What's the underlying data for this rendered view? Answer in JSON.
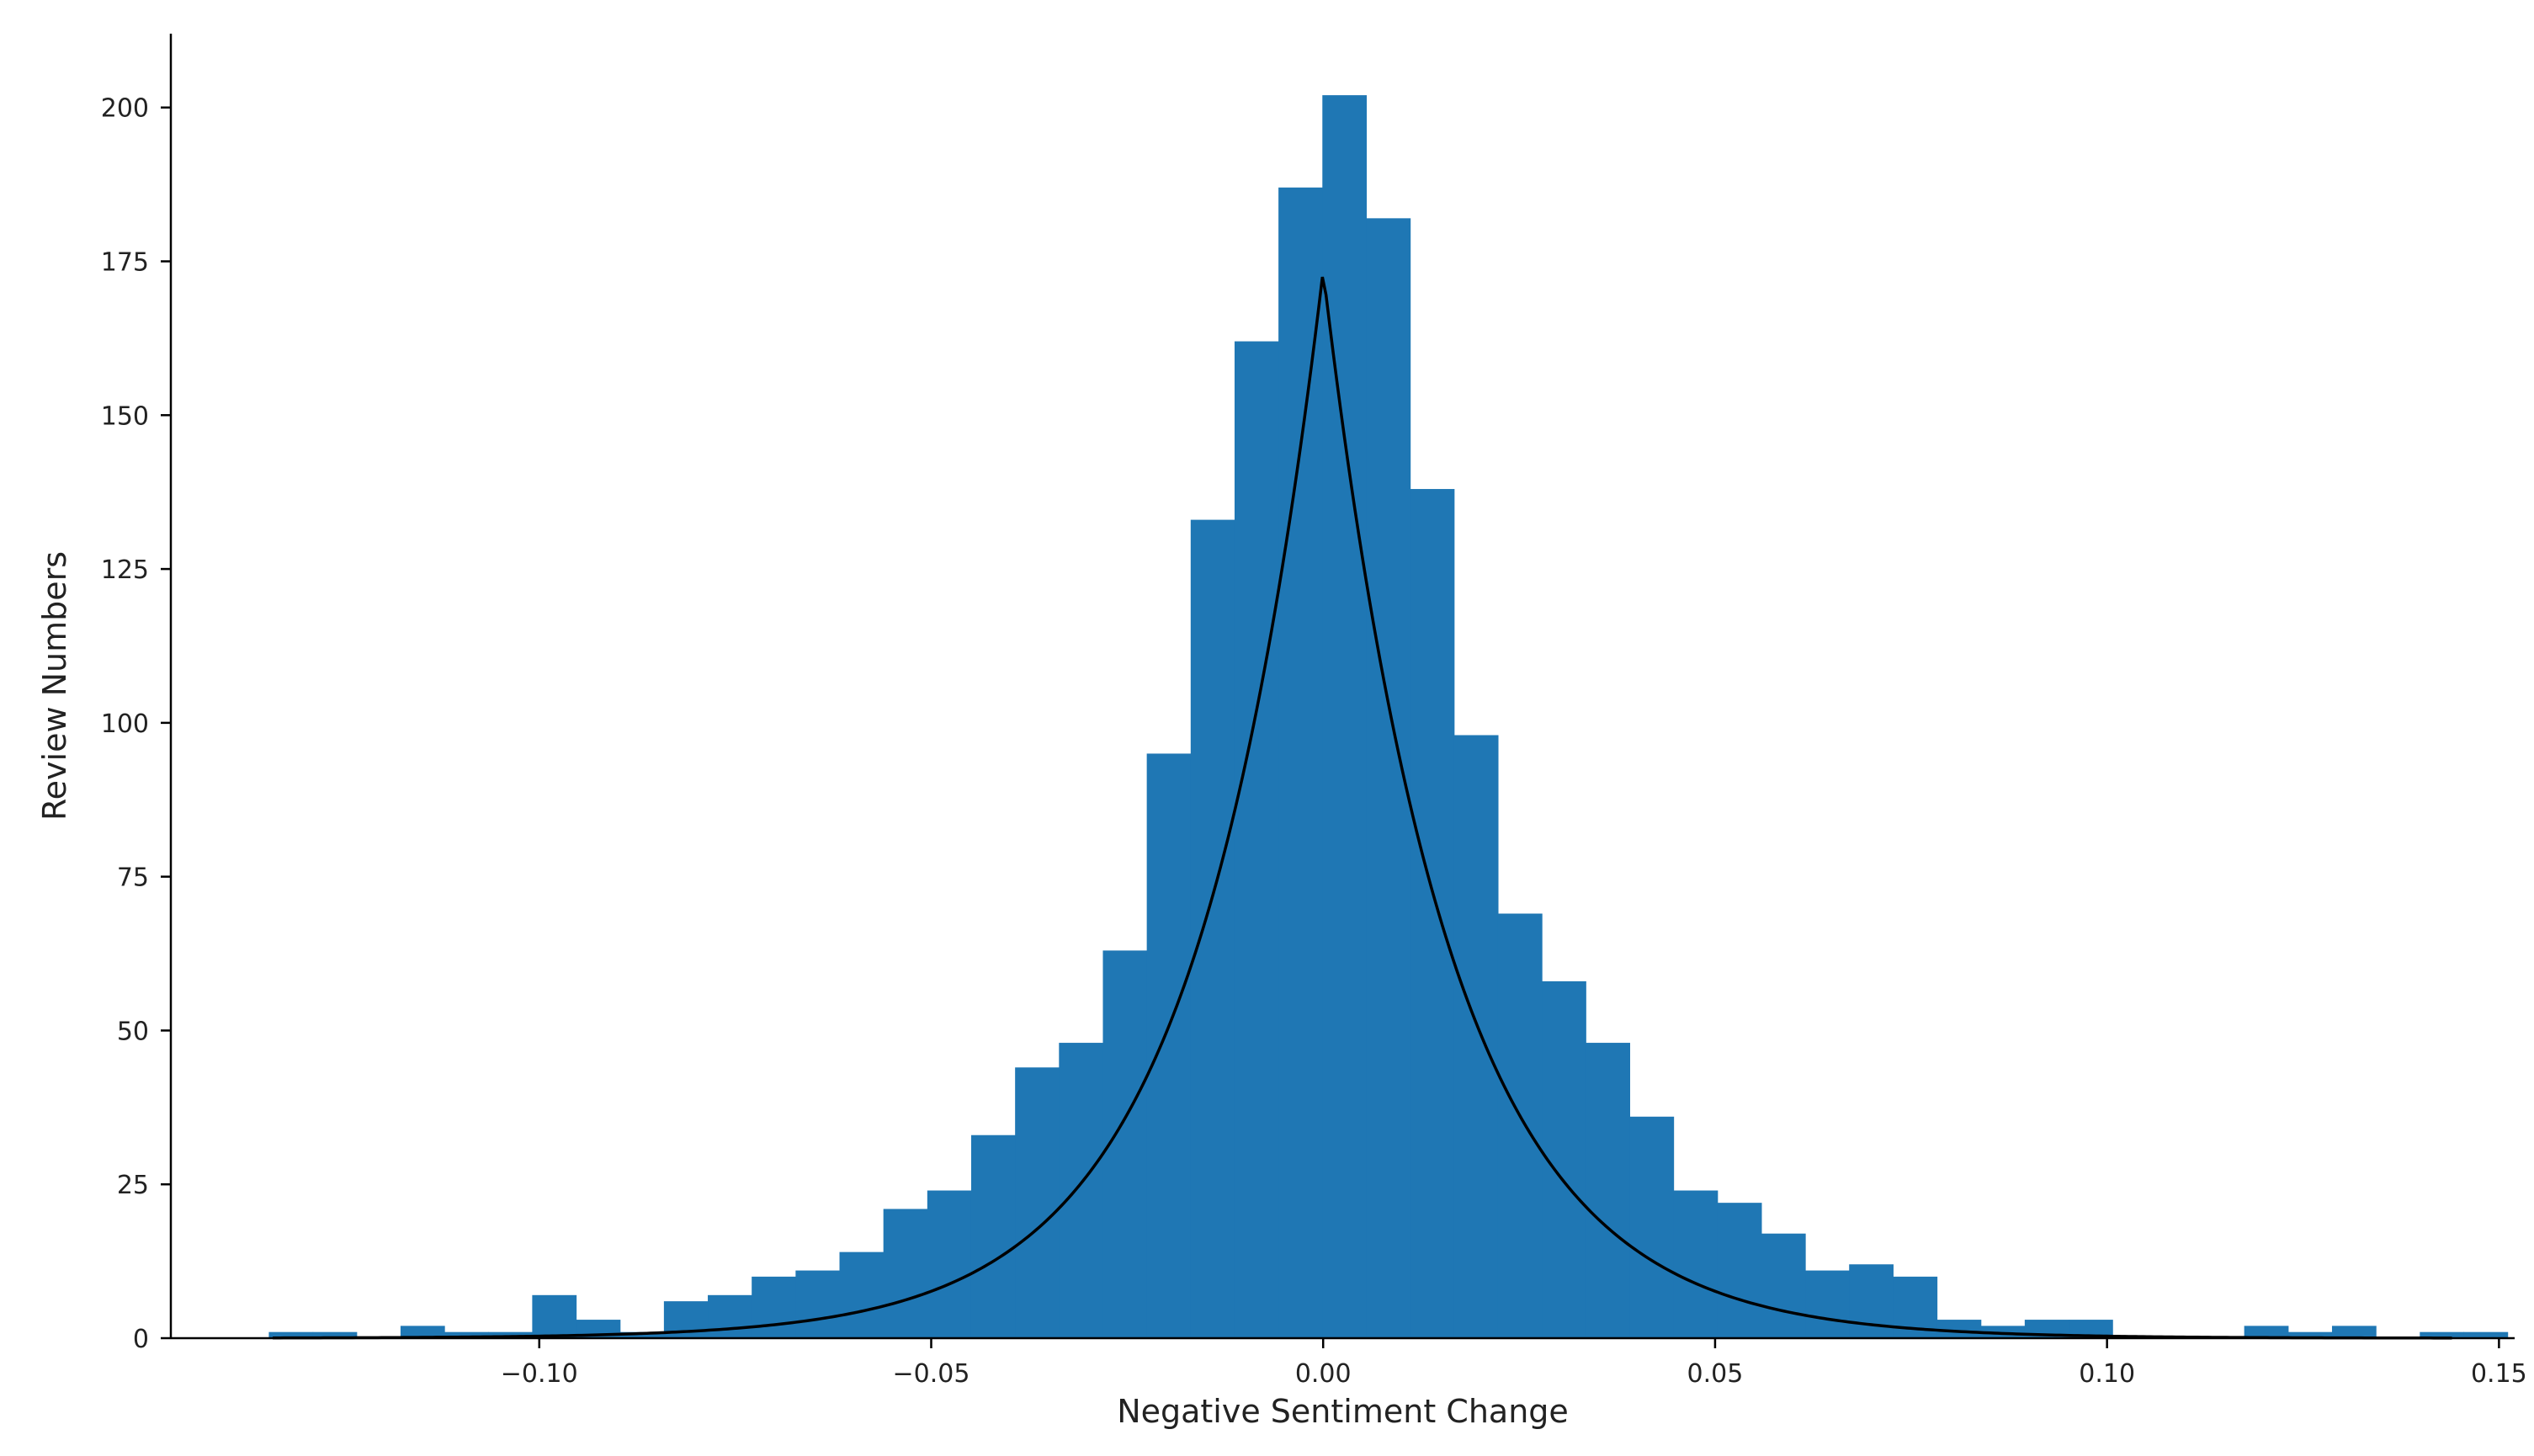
{
  "chart_data": {
    "type": "bar",
    "subtype": "histogram-with-fit",
    "xlabel": "Negative Sentiment Change",
    "ylabel": "Review Numbers",
    "xlim": [
      -0.147,
      0.152
    ],
    "ylim": [
      0,
      212
    ],
    "x_ticks": [
      {
        "value": -0.1,
        "label": "−0.10"
      },
      {
        "value": -0.05,
        "label": "−0.05"
      },
      {
        "value": 0.0,
        "label": "0.00"
      },
      {
        "value": 0.05,
        "label": "0.05"
      },
      {
        "value": 0.1,
        "label": "0.10"
      },
      {
        "value": 0.15,
        "label": "0.15"
      }
    ],
    "y_ticks": [
      {
        "value": 0,
        "label": "0"
      },
      {
        "value": 25,
        "label": "25"
      },
      {
        "value": 50,
        "label": "50"
      },
      {
        "value": 75,
        "label": "75"
      },
      {
        "value": 100,
        "label": "100"
      },
      {
        "value": 125,
        "label": "125"
      },
      {
        "value": 150,
        "label": "150"
      },
      {
        "value": 175,
        "label": "175"
      },
      {
        "value": 200,
        "label": "200"
      }
    ],
    "grid": false,
    "bins": {
      "start": -0.1345,
      "width": 0.0056,
      "counts": [
        1,
        1,
        0,
        2,
        1,
        1,
        7,
        3,
        1,
        6,
        7,
        10,
        11,
        14,
        21,
        24,
        33,
        44,
        48,
        63,
        95,
        133,
        162,
        187,
        202,
        182,
        138,
        98,
        69,
        58,
        48,
        36,
        24,
        22,
        17,
        11,
        12,
        10,
        3,
        2,
        3,
        3,
        0,
        0,
        0,
        2,
        1,
        2,
        0,
        1,
        1
      ]
    },
    "fit_curve": {
      "type": "laplace",
      "peak": 173.5,
      "center": 0.0,
      "scale": 0.016,
      "x_range": [
        -0.134,
        0.144
      ],
      "color": "#000000"
    },
    "colors": {
      "bars": "#1f77b4",
      "axes": "#000000"
    }
  }
}
